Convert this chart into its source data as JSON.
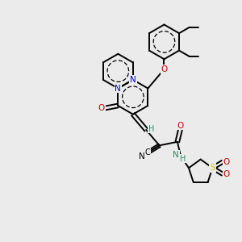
{
  "bg_color": "#ebebeb",
  "bond_color": "#000000",
  "bond_lw": 1.4,
  "figsize": [
    3.0,
    3.0
  ],
  "dpi": 100,
  "xlim": [
    0,
    10
  ],
  "ylim": [
    0,
    10
  ],
  "atoms": {
    "N1_color": "#0000cc",
    "N2_color": "#0000cc",
    "O_color": "#cc0000",
    "S_color": "#cccc00",
    "C_color": "#000000",
    "H_color": "#2d8c5e",
    "N_amide_color": "#2d8c5e"
  }
}
